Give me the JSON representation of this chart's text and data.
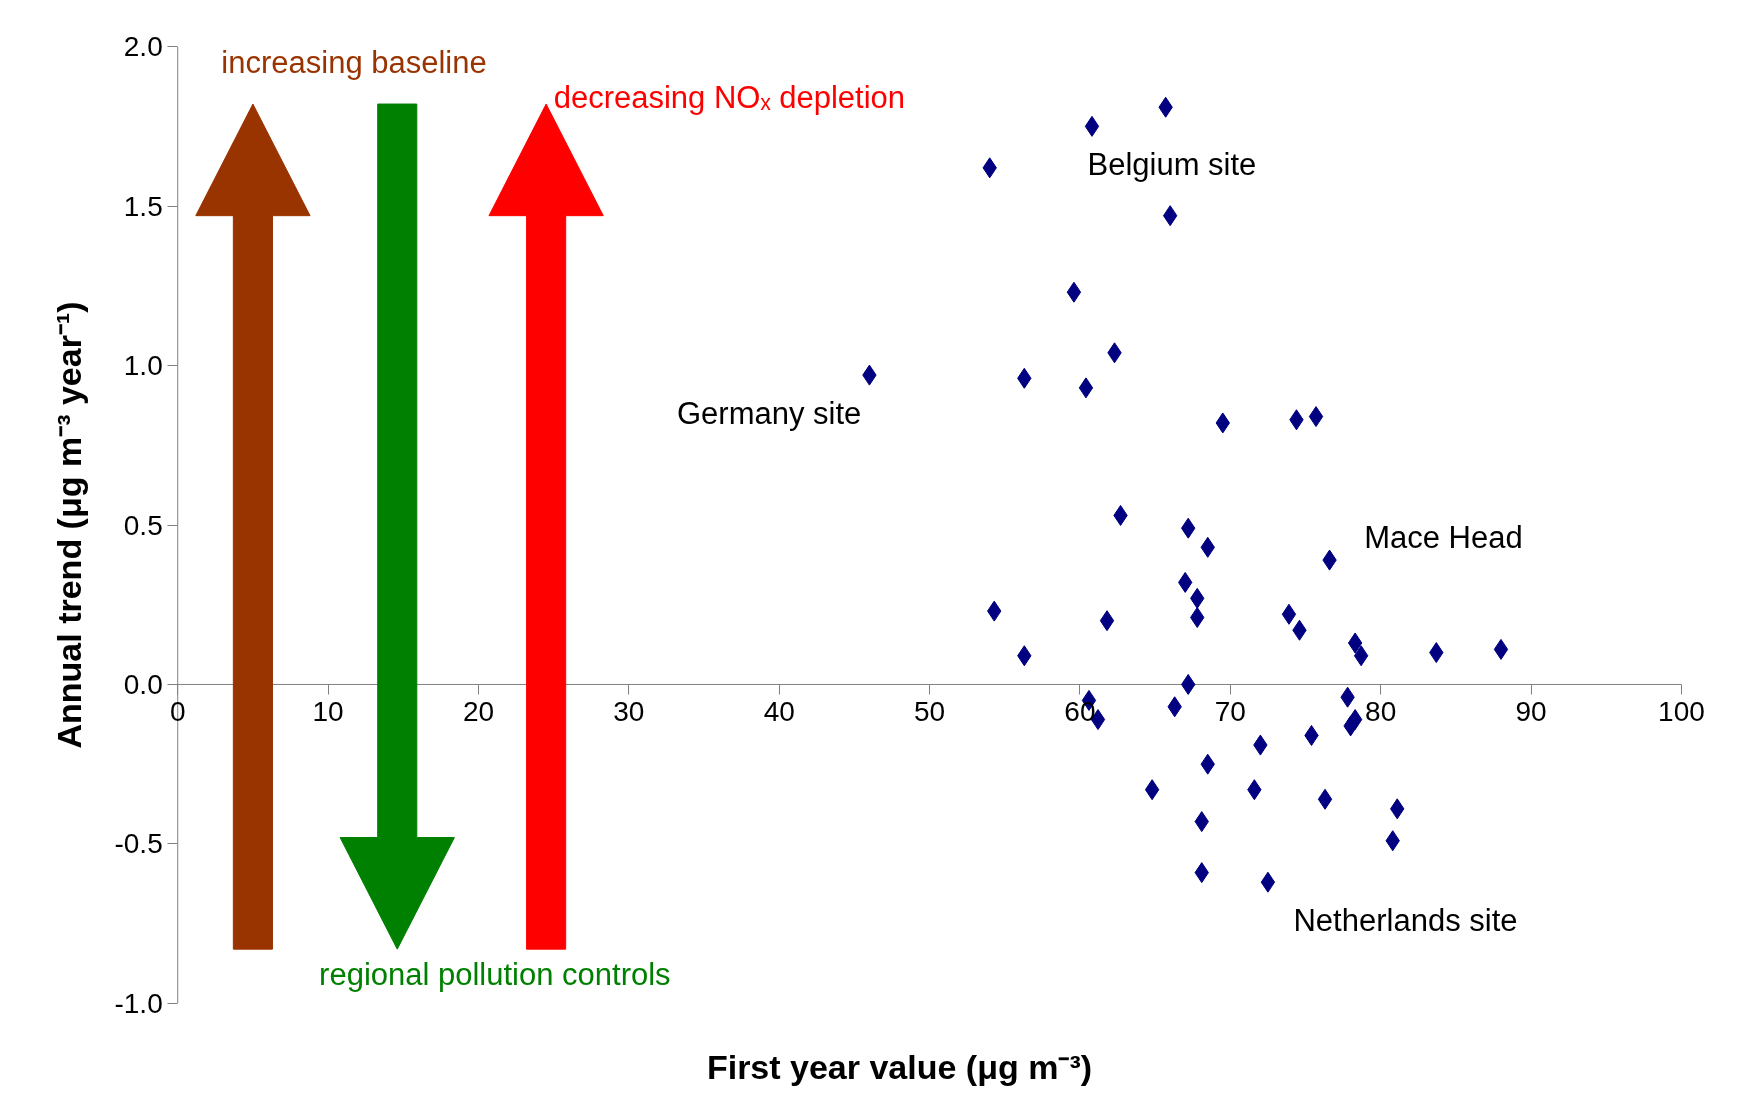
{
  "chart_data": {
    "type": "scatter",
    "xlabel": "First year value (μg m⁻³)",
    "ylabel": "Annual trend (μg m⁻³ year⁻¹)",
    "xlim": [
      0,
      100
    ],
    "xticks": [
      0,
      10,
      20,
      30,
      40,
      50,
      60,
      70,
      80,
      90,
      100
    ],
    "ylim": [
      -1.0,
      2.0
    ],
    "yticks": [
      {
        "value": -1.0,
        "label": "-1.0"
      },
      {
        "value": -0.5,
        "label": "-0.5"
      },
      {
        "value": 0,
        "label": "0.0"
      },
      {
        "value": 0.5,
        "label": "0.5"
      },
      {
        "value": 1.0,
        "label": "1.0"
      },
      {
        "value": 1.5,
        "label": "1.5"
      },
      {
        "value": 2.0,
        "label": "2.0"
      }
    ],
    "marker": "diamond",
    "grid": false,
    "series": [
      {
        "color": "#000080",
        "x": [
          46.0,
          54.0,
          54.3,
          56.3,
          56.3,
          59.6,
          60.4,
          60.6,
          61.2,
          61.8,
          60.8,
          62.3,
          62.7,
          65.7,
          66.0,
          64.8,
          66.3,
          67.0,
          67.2,
          67.2,
          67.8,
          67.8,
          68.5,
          68.5,
          68.1,
          68.1,
          69.5,
          71.6,
          72.0,
          72.5,
          73.9,
          74.6,
          74.4,
          75.7,
          75.4,
          76.6,
          76.3,
          77.8,
          78.3,
          78.7,
          78.3,
          78.0,
          81.1,
          80.8,
          83.7,
          88.0
        ],
        "values": [
          0.97,
          1.62,
          0.23,
          0.09,
          0.96,
          1.23,
          0.93,
          -0.05,
          -0.11,
          0.2,
          1.75,
          1.04,
          0.53,
          1.81,
          1.47,
          -0.33,
          -0.07,
          0.32,
          0.49,
          0.0,
          0.27,
          0.21,
          0.43,
          -0.25,
          -0.43,
          -0.59,
          0.82,
          -0.33,
          -0.19,
          -0.62,
          0.22,
          0.17,
          0.83,
          0.84,
          -0.16,
          0.39,
          -0.36,
          -0.04,
          0.13,
          0.09,
          -0.11,
          -0.13,
          -0.39,
          -0.49,
          0.1,
          0.11
        ]
      }
    ],
    "annotations": [
      "increasing baseline",
      "decreasing NOₓ depletion",
      "regional pollution controls",
      "Germany site",
      "Belgium site",
      "Mace Head",
      "Netherlands site"
    ]
  }
}
